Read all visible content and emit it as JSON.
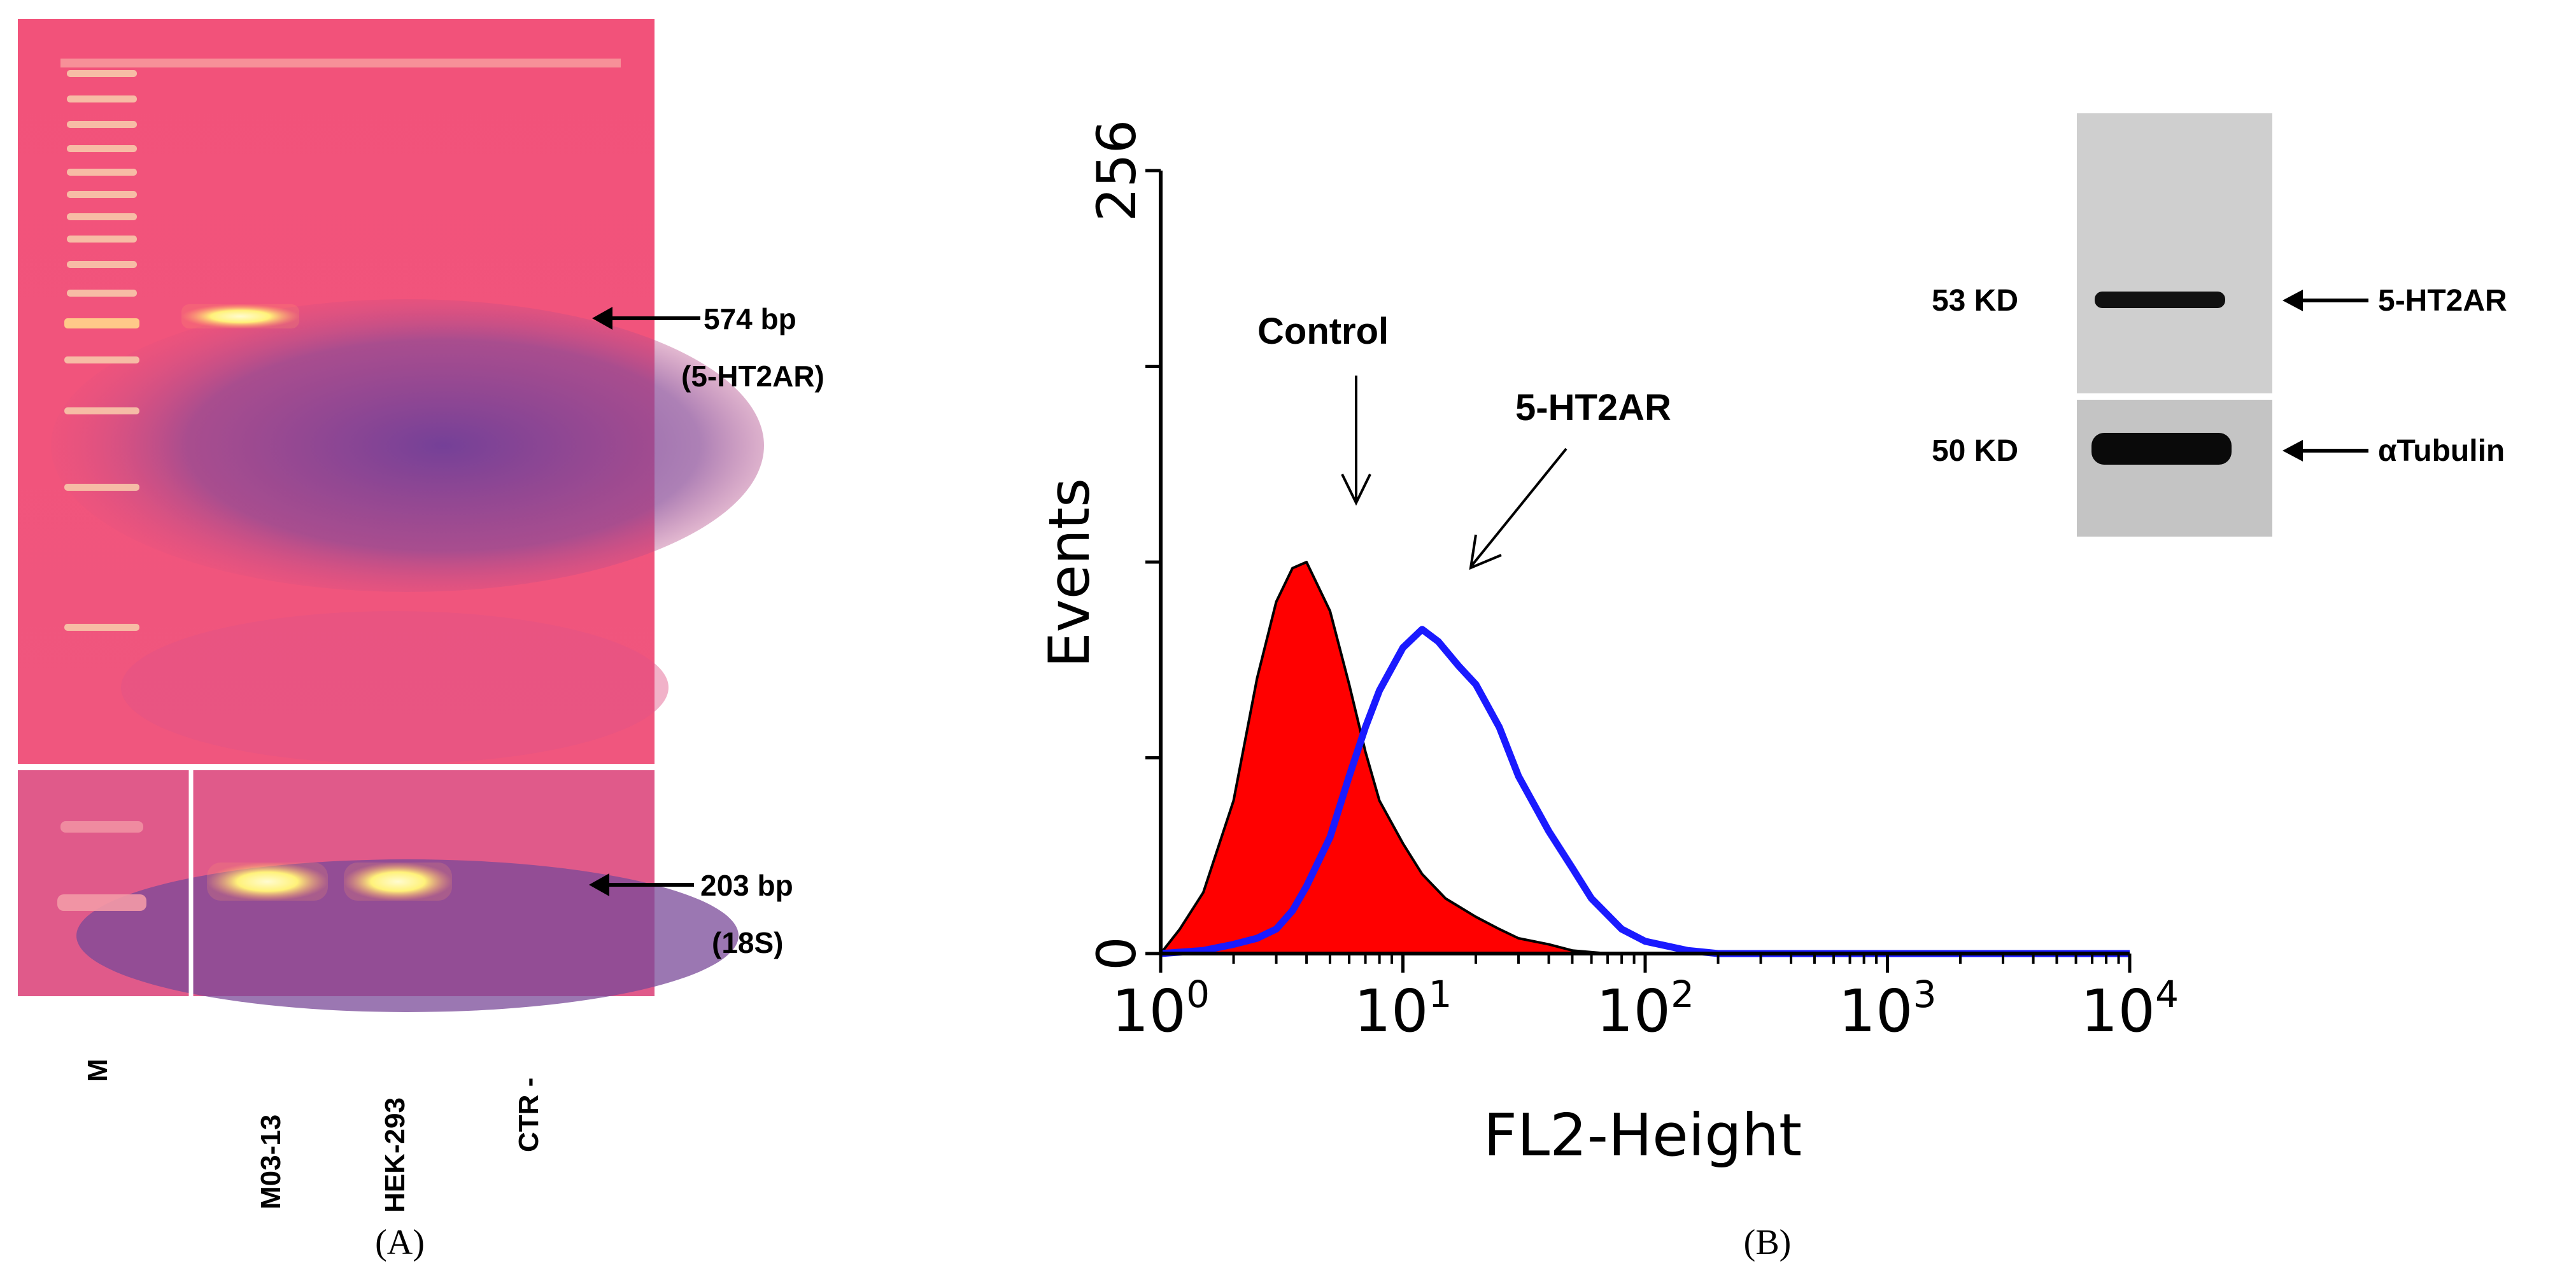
{
  "panel_a": {
    "caption": "(A)",
    "lanes": [
      "M",
      "M03-13",
      "HEK-293",
      "CTR -"
    ],
    "band_main": {
      "size": "574 bp",
      "gene": "(5-HT2AR)"
    },
    "band_control": {
      "size": "203 bp",
      "gene": "(18S)"
    }
  },
  "panel_b": {
    "caption": "(B)",
    "western": {
      "rows": [
        {
          "mw": "53 KD",
          "protein": "5-HT2AR"
        },
        {
          "mw": "50 KD",
          "protein": "αTubulin"
        }
      ]
    }
  },
  "colors": {
    "gel_pink": "#f2527a",
    "gel_purple": "#7b4a95",
    "band_yellow": "#fff27a",
    "control_fill": "#ff0000",
    "receptor_line": "#1a1aff"
  },
  "chart_data": {
    "type": "area",
    "xlabel": "FL2-Height",
    "ylabel": "Events",
    "x_scale": "log",
    "xlim": [
      1,
      10000
    ],
    "ylim": [
      0,
      256
    ],
    "x_ticks": [
      {
        "base": "10",
        "exp": "0",
        "value": 1
      },
      {
        "base": "10",
        "exp": "1",
        "value": 10
      },
      {
        "base": "10",
        "exp": "2",
        "value": 100
      },
      {
        "base": "10",
        "exp": "3",
        "value": 1000
      },
      {
        "base": "10",
        "exp": "4",
        "value": 10000
      }
    ],
    "y_ticks": [
      "0",
      "256"
    ],
    "grid": false,
    "annotations": [
      "Control",
      "5-HT2AR"
    ],
    "series": [
      {
        "name": "Control",
        "style": "filled",
        "x": [
          1,
          1.2,
          1.5,
          2,
          2.5,
          3,
          3.5,
          4,
          5,
          6,
          7,
          8,
          10,
          12,
          15,
          20,
          25,
          30,
          40,
          50,
          70,
          100
        ],
        "y": [
          0,
          8,
          20,
          50,
          90,
          115,
          126,
          128,
          112,
          88,
          66,
          50,
          36,
          26,
          18,
          12,
          8,
          5,
          3,
          1,
          0,
          0
        ]
      },
      {
        "name": "5-HT2AR",
        "style": "line",
        "x": [
          1,
          1.5,
          2,
          2.5,
          3,
          3.5,
          4,
          5,
          6,
          7,
          8,
          10,
          12,
          14,
          17,
          20,
          25,
          30,
          40,
          50,
          60,
          80,
          100,
          150,
          200,
          500,
          1000,
          10000
        ],
        "y": [
          0,
          1,
          3,
          5,
          8,
          14,
          22,
          38,
          58,
          74,
          86,
          100,
          106,
          102,
          94,
          88,
          74,
          58,
          40,
          28,
          18,
          8,
          4,
          1,
          0,
          0,
          0,
          0
        ]
      }
    ]
  }
}
